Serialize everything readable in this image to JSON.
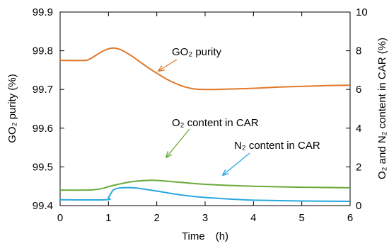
{
  "chart_data": {
    "type": "line",
    "xlabel": "Time　(h)",
    "ylabel_left": "GO₂ purity (%)",
    "ylabel_right": "O₂ and N₂ content in CAR (%)",
    "xlim": [
      0,
      6
    ],
    "ylim_left": [
      99.4,
      99.9
    ],
    "ylim_right": [
      0,
      10
    ],
    "x_ticks": [
      "0",
      "1",
      "2",
      "3",
      "4",
      "5",
      "6"
    ],
    "y_left_ticks": [
      "99.4",
      "99.5",
      "99.6",
      "99.7",
      "99.8",
      "99.9"
    ],
    "y_right_ticks": [
      "0",
      "2",
      "4",
      "6",
      "8",
      "10"
    ],
    "grid": false,
    "legend": "none",
    "series": [
      {
        "name": "GO₂ purity",
        "axis": "left",
        "color": "#e07828",
        "x": [
          0,
          0.5,
          0.6,
          0.7,
          0.8,
          0.9,
          1.0,
          1.1,
          1.2,
          1.3,
          1.5,
          1.8,
          2.0,
          2.2,
          2.4,
          2.6,
          2.8,
          3.0,
          3.2,
          3.5,
          4.0,
          4.5,
          5.0,
          5.5,
          6.0
        ],
        "y": [
          99.775,
          99.775,
          99.778,
          99.785,
          99.793,
          99.8,
          99.805,
          99.807,
          99.805,
          99.8,
          99.785,
          99.758,
          99.742,
          99.727,
          99.715,
          99.706,
          99.701,
          99.7,
          99.7,
          99.701,
          99.703,
          99.706,
          99.708,
          99.71,
          99.711
        ]
      },
      {
        "name": "O₂ content in CAR",
        "axis": "right",
        "color": "#6aaa3a",
        "x": [
          0,
          0.5,
          0.7,
          0.9,
          1.0,
          1.2,
          1.5,
          1.8,
          2.0,
          2.5,
          3.0,
          4.0,
          5.0,
          6.0
        ],
        "y": [
          0.8,
          0.8,
          0.82,
          0.9,
          0.98,
          1.1,
          1.24,
          1.3,
          1.3,
          1.2,
          1.1,
          1.0,
          0.95,
          0.92
        ]
      },
      {
        "name": "N₂ content in CAR",
        "axis": "right",
        "color": "#2aa8e0",
        "x": [
          0,
          0.95,
          1.0,
          1.05,
          1.1,
          1.2,
          1.4,
          1.6,
          2.0,
          2.5,
          3.0,
          3.5,
          4.0,
          5.0,
          6.0
        ],
        "y": [
          0.3,
          0.3,
          0.42,
          0.62,
          0.8,
          0.9,
          0.93,
          0.9,
          0.75,
          0.55,
          0.42,
          0.34,
          0.28,
          0.24,
          0.22
        ]
      }
    ],
    "annotations": [
      {
        "text": "GO₂ purity",
        "series": 0
      },
      {
        "text": "O₂ content in CAR",
        "series": 1
      },
      {
        "text": "N₂ content in CAR",
        "series": 2
      }
    ]
  }
}
